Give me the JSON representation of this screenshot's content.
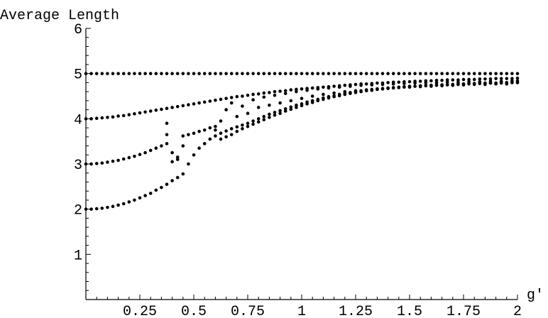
{
  "chart_data": {
    "type": "scatter",
    "title": "",
    "xlabel": "g'",
    "ylabel": "Average Length",
    "xlim": [
      0,
      2
    ],
    "ylim": [
      0,
      6
    ],
    "x_ticks": [
      0.25,
      0.5,
      0.75,
      1,
      1.25,
      1.5,
      1.75,
      2
    ],
    "x_tick_labels": [
      "0.25",
      "0.5",
      "0.75",
      "1",
      "1.25",
      "1.5",
      "1.75",
      "2"
    ],
    "y_ticks": [
      1,
      2,
      3,
      4,
      5,
      6
    ],
    "y_tick_labels": [
      "1",
      "2",
      "3",
      "4",
      "5",
      "6"
    ],
    "grid": false,
    "legend": "none",
    "marker_color": "#000000",
    "series": [
      {
        "x": [
          0,
          0.025,
          0.05,
          0.075,
          0.1,
          0.125,
          0.15,
          0.175,
          0.2,
          0.225,
          0.25,
          0.275,
          0.3,
          0.325,
          0.35,
          0.375,
          0.4,
          0.425,
          0.45,
          0.475,
          0.5,
          0.525,
          0.55,
          0.575,
          0.6,
          0.625,
          0.65,
          0.675,
          0.7,
          0.725,
          0.75,
          0.775,
          0.8,
          0.825,
          0.85,
          0.875,
          0.9,
          0.925,
          0.95,
          0.975,
          1,
          1.025,
          1.05,
          1.075,
          1.1,
          1.125,
          1.15,
          1.175,
          1.2,
          1.225,
          1.25,
          1.275,
          1.3,
          1.325,
          1.35,
          1.375,
          1.4,
          1.425,
          1.45,
          1.475,
          1.5,
          1.525,
          1.55,
          1.575,
          1.6,
          1.625,
          1.65,
          1.675,
          1.7,
          1.725,
          1.75,
          1.775,
          1.8,
          1.825,
          1.85,
          1.875,
          1.9,
          1.925,
          1.95,
          1.975,
          2
        ],
        "y": [
          5,
          5,
          5,
          5,
          5,
          5,
          5,
          5,
          5,
          5,
          5,
          5,
          5,
          5,
          5,
          5,
          5,
          5,
          5,
          5,
          5,
          5,
          5,
          5,
          5,
          5,
          5,
          5,
          5,
          5,
          5,
          5,
          5,
          5,
          5,
          5,
          5,
          5,
          5,
          5,
          5,
          5,
          5,
          5,
          5,
          5,
          5,
          5,
          5,
          5,
          5,
          5,
          5,
          5,
          5,
          5,
          5,
          5,
          5,
          5,
          5,
          5,
          5,
          5,
          5,
          5,
          5,
          5,
          5,
          5,
          5,
          5,
          5,
          5,
          5,
          5,
          5,
          5,
          5,
          5,
          5
        ]
      },
      {
        "x": [
          0,
          0.025,
          0.05,
          0.075,
          0.1,
          0.125,
          0.15,
          0.175,
          0.2,
          0.225,
          0.25,
          0.275,
          0.3,
          0.325,
          0.35,
          0.375,
          0.4,
          0.425,
          0.45,
          0.475,
          0.5,
          0.525,
          0.55,
          0.575,
          0.6,
          0.625,
          0.65,
          0.675,
          0.7,
          0.725,
          0.75,
          0.775,
          0.8,
          0.825,
          0.85,
          0.875,
          0.9,
          0.925,
          0.95,
          0.975,
          1,
          1.025,
          1.05,
          1.075,
          1.1,
          1.125,
          1.15,
          1.175,
          1.2,
          1.225,
          1.25,
          1.275,
          1.3,
          1.325,
          1.35,
          1.375,
          1.4,
          1.425,
          1.45,
          1.475,
          1.5,
          1.525,
          1.55,
          1.575,
          1.6,
          1.625,
          1.65,
          1.675,
          1.7,
          1.725,
          1.75,
          1.775,
          1.8,
          1.825,
          1.85,
          1.875,
          1.9,
          1.925,
          1.95,
          1.975,
          2
        ],
        "y": [
          4.0,
          4.0,
          4.01,
          4.02,
          4.03,
          4.04,
          4.06,
          4.07,
          4.09,
          4.11,
          4.13,
          4.15,
          4.17,
          4.19,
          4.21,
          4.23,
          4.25,
          4.27,
          4.29,
          4.31,
          4.33,
          4.35,
          4.37,
          4.39,
          4.41,
          4.43,
          4.45,
          4.47,
          4.49,
          4.5,
          4.52,
          4.54,
          4.55,
          4.57,
          4.58,
          4.6,
          4.61,
          4.62,
          4.64,
          4.65,
          4.66,
          4.67,
          4.68,
          4.69,
          4.7,
          4.71,
          4.72,
          4.73,
          4.74,
          4.75,
          4.76,
          4.77,
          4.77,
          4.78,
          4.79,
          4.79,
          4.8,
          4.81,
          4.81,
          4.82,
          4.82,
          4.83,
          4.83,
          4.84,
          4.84,
          4.85,
          4.85,
          4.86,
          4.86,
          4.86,
          4.87,
          4.87,
          4.87,
          4.88,
          4.88,
          4.88,
          4.89,
          4.89,
          4.89,
          4.89,
          4.9
        ]
      },
      {
        "x": [
          0,
          0.025,
          0.05,
          0.075,
          0.1,
          0.125,
          0.15,
          0.175,
          0.2,
          0.225,
          0.25,
          0.275,
          0.3,
          0.325,
          0.35,
          0.375,
          0.4,
          0.425,
          0.45,
          0.475,
          0.5,
          0.525,
          0.55,
          0.575,
          0.6,
          0.625,
          0.65,
          0.675,
          0.7,
          0.725,
          0.75,
          0.775,
          0.8,
          0.825,
          0.85,
          0.875,
          0.9,
          0.925,
          0.95,
          0.975,
          1,
          1.025,
          1.05,
          1.075,
          1.1,
          1.125,
          1.15,
          1.175,
          1.2,
          1.225,
          1.25,
          1.275,
          1.3,
          1.325,
          1.35,
          1.375,
          1.4,
          1.425,
          1.45,
          1.475,
          1.5,
          1.525,
          1.55,
          1.575,
          1.6,
          1.625,
          1.65,
          1.675,
          1.7,
          1.725,
          1.75,
          1.775,
          1.8,
          1.825,
          1.85,
          1.875,
          1.9,
          1.925,
          1.95,
          1.975,
          2
        ],
        "y": [
          3.0,
          3.0,
          3.01,
          3.02,
          3.04,
          3.06,
          3.08,
          3.11,
          3.14,
          3.17,
          3.21,
          3.25,
          3.3,
          3.35,
          3.4,
          3.45,
          3.05,
          3.1,
          3.62,
          3.65,
          3.68,
          3.72,
          3.75,
          3.8,
          3.83,
          3.55,
          3.6,
          3.65,
          3.72,
          3.78,
          3.83,
          3.88,
          3.93,
          3.98,
          4.03,
          4.08,
          4.12,
          4.17,
          4.21,
          4.25,
          4.29,
          4.33,
          4.36,
          4.4,
          4.43,
          4.46,
          4.49,
          4.51,
          4.54,
          4.56,
          4.58,
          4.6,
          4.62,
          4.63,
          4.65,
          4.66,
          4.67,
          4.68,
          4.69,
          4.7,
          4.71,
          4.72,
          4.72,
          4.73,
          4.74,
          4.74,
          4.75,
          4.75,
          4.76,
          4.76,
          4.77,
          4.77,
          4.78,
          4.78,
          4.78,
          4.79,
          4.79,
          4.79,
          4.8,
          4.8,
          4.8
        ]
      },
      {
        "x": [
          0,
          0.025,
          0.05,
          0.075,
          0.1,
          0.125,
          0.15,
          0.175,
          0.2,
          0.225,
          0.25,
          0.275,
          0.3,
          0.325,
          0.35,
          0.375,
          0.4,
          0.425,
          0.45,
          0.475,
          0.5,
          0.525,
          0.55,
          0.575,
          0.6,
          0.625,
          0.65,
          0.675,
          0.7,
          0.725,
          0.75,
          0.775,
          0.8,
          0.825,
          0.85,
          0.875,
          0.9,
          0.925,
          0.95,
          0.975,
          1,
          1.025,
          1.05,
          1.075,
          1.1,
          1.125,
          1.15,
          1.175,
          1.2,
          1.225,
          1.25,
          1.275,
          1.3,
          1.325,
          1.35,
          1.375,
          1.4,
          1.425,
          1.45,
          1.475,
          1.5,
          1.525,
          1.55,
          1.575,
          1.6,
          1.625,
          1.65,
          1.675,
          1.7,
          1.725,
          1.75,
          1.775,
          1.8,
          1.825,
          1.85,
          1.875,
          1.9,
          1.925,
          1.95,
          1.975,
          2
        ],
        "y": [
          2.0,
          2.0,
          2.01,
          2.02,
          2.04,
          2.06,
          2.09,
          2.12,
          2.16,
          2.2,
          2.25,
          2.3,
          2.35,
          2.42,
          2.48,
          2.55,
          2.63,
          2.7,
          2.78,
          3.0,
          3.2,
          3.35,
          3.45,
          3.55,
          3.62,
          3.68,
          3.73,
          3.78,
          3.82,
          3.86,
          3.9,
          3.95,
          4.0,
          4.05,
          4.1,
          4.14,
          4.18,
          4.22,
          4.26,
          4.3,
          4.33,
          4.37,
          4.4,
          4.43,
          4.46,
          4.49,
          4.51,
          4.54,
          4.56,
          4.58,
          4.6,
          4.62,
          4.63,
          4.65,
          4.66,
          4.67,
          4.68,
          4.69,
          4.7,
          4.71,
          4.72,
          4.72,
          4.73,
          4.74,
          4.74,
          4.75,
          4.75,
          4.76,
          4.76,
          4.77,
          4.77,
          4.78,
          4.78,
          4.78,
          4.79,
          4.79,
          4.79,
          4.8,
          4.8,
          4.8,
          4.8
        ]
      },
      {
        "x": [
          0.375,
          0.375,
          0.4,
          0.425,
          0.45,
          0.6,
          0.625,
          0.65,
          0.675,
          0.7,
          0.725,
          0.75,
          0.775,
          0.8,
          0.825,
          0.85,
          0.875,
          0.9,
          0.925,
          0.95,
          0.975,
          1,
          1.025,
          1.05,
          1.075,
          1.1,
          1.125,
          1.15,
          1.175,
          1.2,
          1.225,
          1.25,
          1.275,
          1.3,
          1.325,
          1.35,
          1.375,
          1.4,
          1.425,
          1.45,
          1.475,
          1.5,
          1.525,
          1.55,
          1.575,
          1.6,
          1.625,
          1.65,
          1.675,
          1.7,
          1.725,
          1.75,
          1.775,
          1.8,
          1.825,
          1.85,
          1.875,
          1.9,
          1.925,
          1.95,
          1.975,
          2
        ],
        "y": [
          3.9,
          3.65,
          3.25,
          3.15,
          3.4,
          3.75,
          3.95,
          4.2,
          4.35,
          4.05,
          4.28,
          4.12,
          4.42,
          4.25,
          4.48,
          4.3,
          4.52,
          4.35,
          4.56,
          4.4,
          4.6,
          4.45,
          4.63,
          4.5,
          4.66,
          4.54,
          4.68,
          4.57,
          4.7,
          4.6,
          4.72,
          4.62,
          4.74,
          4.64,
          4.75,
          4.66,
          4.76,
          4.68,
          4.77,
          4.69,
          4.78,
          4.7,
          4.79,
          4.71,
          4.8,
          4.72,
          4.8,
          4.73,
          4.81,
          4.74,
          4.81,
          4.75,
          4.82,
          4.76,
          4.82,
          4.76,
          4.83,
          4.77,
          4.83,
          4.77,
          4.84,
          4.84
        ]
      }
    ]
  }
}
